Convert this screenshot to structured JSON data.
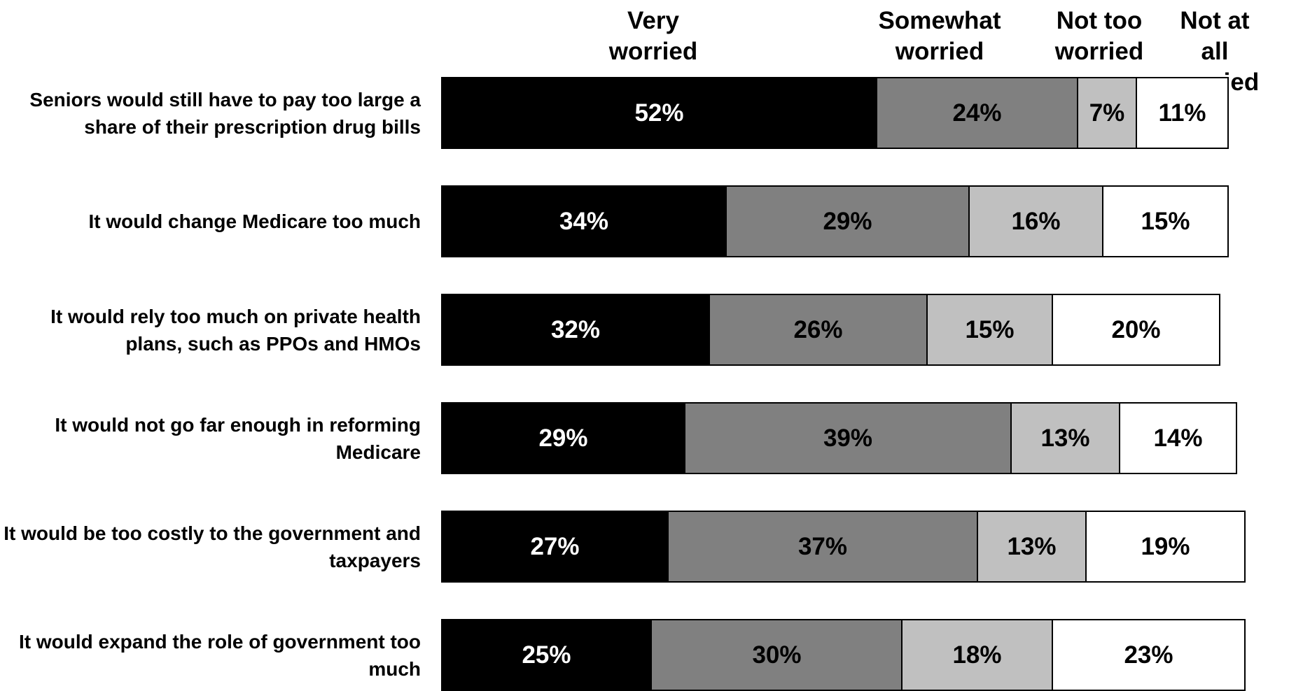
{
  "chart_data": {
    "type": "bar",
    "orientation": "horizontal",
    "stacked": true,
    "series": [
      {
        "name": "Very\nworried",
        "color": "#000000",
        "label_color": "#ffffff",
        "values": [
          52,
          34,
          32,
          29,
          27,
          25
        ]
      },
      {
        "name": "Somewhat\nworried",
        "color": "#808080",
        "label_color": "#000000",
        "values": [
          24,
          29,
          26,
          39,
          37,
          30
        ]
      },
      {
        "name": "Not too\nworried",
        "color": "#c0c0c0",
        "label_color": "#000000",
        "values": [
          7,
          16,
          15,
          13,
          13,
          18
        ]
      },
      {
        "name": "Not at all\nworried",
        "color": "#ffffff",
        "label_color": "#000000",
        "values": [
          11,
          15,
          20,
          14,
          19,
          23
        ]
      }
    ],
    "categories": [
      "Seniors would still have to pay too large a share of their prescription drug bills",
      "It would change Medicare too much",
      "It would rely too much on private health plans, such as PPOs and HMOs",
      "It would not go far enough in reforming Medicare",
      "It would be too costly to the government and taxpayers",
      "It would expand the role of government too much"
    ],
    "value_suffix": "%",
    "grid": false,
    "legend": "top"
  }
}
